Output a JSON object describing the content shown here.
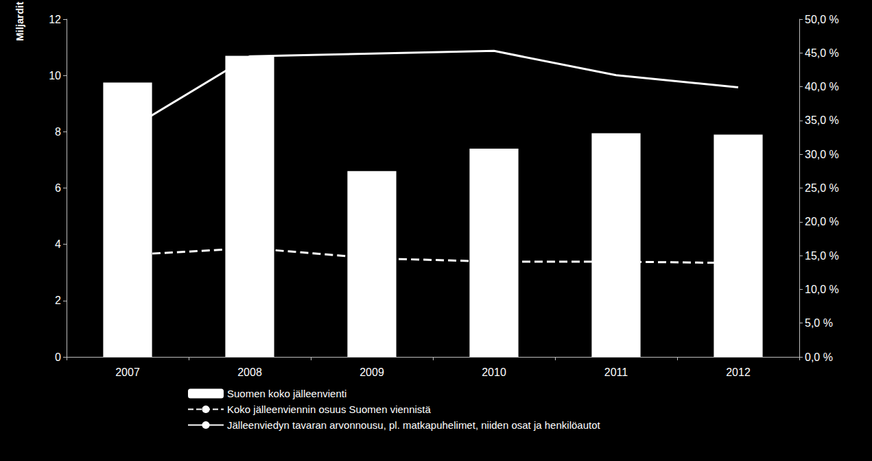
{
  "chart_data": {
    "type": "bar",
    "y_label": "Miljardit",
    "categories": [
      "2007",
      "2008",
      "2009",
      "2010",
      "2011",
      "2012"
    ],
    "series": [
      {
        "name": "Suomen koko jälleenvienti",
        "type": "bar",
        "color": "#ffffff",
        "values": [
          9.75,
          10.7,
          6.6,
          7.4,
          7.95,
          7.9
        ]
      },
      {
        "name": "Koko jälleenviennin osuus Suomen viennistä",
        "type": "line",
        "axis": "y2",
        "color": "#ffffff",
        "line_style": "dashed",
        "values": [
          15.1,
          16.1,
          14.6,
          14.1,
          14.1,
          13.9
        ]
      },
      {
        "name": "Jälleenviedyn tavaran arvonnousu, pl. matkapuhelimet, niiden osat ja henkilöautot",
        "type": "line",
        "axis": "y2",
        "color": "#ffffff",
        "line_style": "solid",
        "values": [
          33.6,
          44.5,
          44.9,
          45.3,
          41.7,
          39.9
        ]
      }
    ],
    "ylim": [
      0,
      12
    ],
    "yticks": [
      0,
      2,
      4,
      6,
      8,
      10,
      12
    ],
    "y2lim": [
      0,
      50
    ],
    "y2ticks": [
      {
        "value": 0,
        "label": "0,0 %"
      },
      {
        "value": 5,
        "label": "5,0 %"
      },
      {
        "value": 10,
        "label": "10,0 %"
      },
      {
        "value": 15,
        "label": "15,0 %"
      },
      {
        "value": 20,
        "label": "20,0 %"
      },
      {
        "value": 25,
        "label": "25,0 %"
      },
      {
        "value": 30,
        "label": "30,0 %"
      },
      {
        "value": 35,
        "label": "35,0 %"
      },
      {
        "value": 40,
        "label": "40,0 %"
      },
      {
        "value": 45,
        "label": "45,0 %"
      },
      {
        "value": 50,
        "label": "50,0 %"
      }
    ],
    "grid": false,
    "legend": "bottom"
  }
}
